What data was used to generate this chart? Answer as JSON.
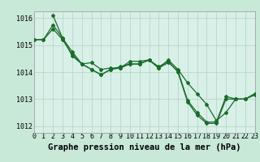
{
  "title": "Graphe pression niveau de la mer (hPa)",
  "background_color": "#c8e8d8",
  "plot_bg_color": "#d8f0e8",
  "grid_color": "#b8d8c8",
  "line_color": "#1a6b2a",
  "border_color": "#aaaaaa",
  "text_color": "#000000",
  "series": [
    {
      "x": [
        0,
        1,
        2,
        3,
        4,
        5,
        6,
        7,
        8,
        9,
        10,
        11,
        12,
        13,
        14,
        15,
        16,
        17,
        18,
        19,
        20,
        21,
        22,
        23
      ],
      "y": [
        1015.2,
        1015.2,
        1015.75,
        1015.25,
        1014.75,
        1014.3,
        1014.1,
        1013.9,
        1014.1,
        1014.15,
        1014.3,
        1014.3,
        1014.45,
        1014.15,
        1014.35,
        1014.05,
        1012.95,
        1012.5,
        1012.15,
        1012.15,
        1013.1,
        1013.0,
        1013.0,
        1013.2
      ]
    },
    {
      "x": [
        0,
        1,
        2,
        3,
        4,
        5,
        6,
        7,
        8,
        9,
        10,
        11,
        12,
        13,
        14,
        15,
        16,
        17,
        18,
        19,
        20,
        21,
        22,
        23
      ],
      "y": [
        1015.2,
        1015.2,
        1015.6,
        1015.2,
        1014.65,
        1014.3,
        1014.1,
        1013.9,
        1014.1,
        1014.2,
        1014.3,
        1014.3,
        1014.45,
        1014.2,
        1014.4,
        1014.0,
        1012.9,
        1012.4,
        1012.1,
        1012.1,
        1013.0,
        1013.0,
        1013.0,
        1013.15
      ]
    },
    {
      "x": [
        2,
        3,
        4,
        5,
        6,
        7,
        8,
        9,
        10,
        11,
        12,
        13,
        14,
        15,
        16,
        17,
        18,
        19,
        20,
        21,
        22,
        23
      ],
      "y": [
        1016.1,
        1015.25,
        1014.6,
        1014.3,
        1014.35,
        1014.1,
        1014.15,
        1014.15,
        1014.4,
        1014.4,
        1014.45,
        1014.15,
        1014.45,
        1014.1,
        1013.6,
        1013.2,
        1012.8,
        1012.2,
        1012.5,
        1013.0,
        1013.0,
        1013.2
      ]
    }
  ],
  "xlim": [
    0,
    23
  ],
  "ylim": [
    1011.75,
    1016.25
  ],
  "yticks": [
    1012,
    1013,
    1014,
    1015,
    1016
  ],
  "xticks": [
    0,
    1,
    2,
    3,
    4,
    5,
    6,
    7,
    8,
    9,
    10,
    11,
    12,
    13,
    14,
    15,
    16,
    17,
    18,
    19,
    20,
    21,
    22,
    23
  ],
  "tick_fontsize": 6.0,
  "xlabel_fontsize": 7.5,
  "marker": "D",
  "marker_size": 2.0,
  "linewidth": 0.9
}
